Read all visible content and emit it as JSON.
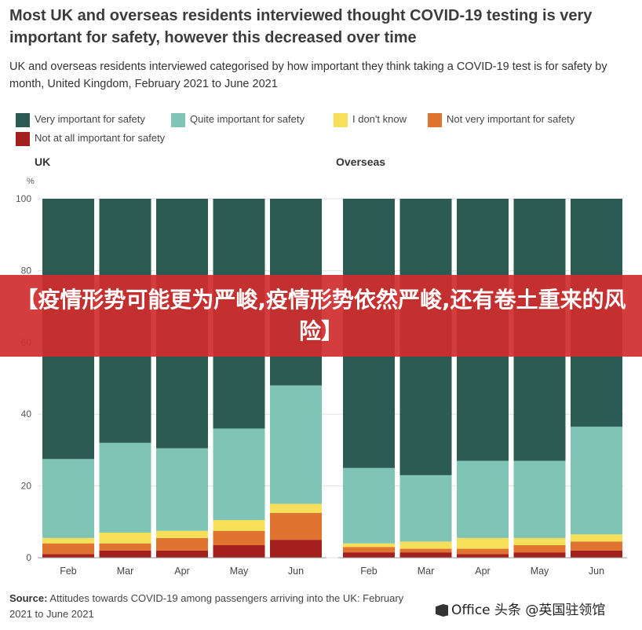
{
  "header": {
    "title": "Most UK and overseas residents interviewed thought COVID-19 testing is very important for safety, however this decreased over time",
    "subtitle": "UK and overseas residents interviewed categorised by how important they think taking a COVID-19 test is for safety by month, United Kingdom, February 2021 to June 2021"
  },
  "footer": {
    "source_label": "Source:",
    "source_text": "Attitudes towards COVID-19 among passengers arriving into the UK: February 2021 to June 2021"
  },
  "banner": {
    "text": "【疫情形势可能更为严峻,疫情形势依然严峻,还有卷土重来的风险】"
  },
  "watermark": {
    "text": "Office 头条 @英国驻领馆",
    "icon": "office-logo-icon"
  },
  "colors": {
    "very": "#2b5b52",
    "quite": "#7fc4b5",
    "dont_know": "#f6e05a",
    "not_very": "#e0732f",
    "not_at_all": "#a3201e"
  },
  "chart_data": {
    "type": "bar",
    "stacked": true,
    "categories": [
      "Feb",
      "Mar",
      "Apr",
      "May",
      "Jun"
    ],
    "ylabel": "%",
    "ylim": [
      0,
      100
    ],
    "yticks": [
      0,
      20,
      40,
      60,
      80,
      100
    ],
    "legend_position": "top-left",
    "series_names": [
      "Very important for safety",
      "Quite important for safety",
      "I don't know",
      "Not very important for safety",
      "Not at all important for safety"
    ],
    "panels": [
      {
        "title": "UK",
        "series": [
          {
            "name": "Not at all important for safety",
            "values": [
              1,
              2,
              2,
              3.5,
              5
            ]
          },
          {
            "name": "Not very important for safety",
            "values": [
              3,
              2,
              3.5,
              4,
              7.5
            ]
          },
          {
            "name": "I don't know",
            "values": [
              1.5,
              3,
              2,
              3,
              2.5
            ]
          },
          {
            "name": "Quite important for safety",
            "values": [
              22,
              25,
              23,
              25.5,
              33
            ]
          },
          {
            "name": "Very important for safety",
            "values": [
              72.5,
              68,
              69.5,
              64,
              52
            ]
          }
        ]
      },
      {
        "title": "Overseas",
        "series": [
          {
            "name": "Not at all important for safety",
            "values": [
              1.5,
              1.5,
              1,
              1.5,
              2
            ]
          },
          {
            "name": "Not very important for safety",
            "values": [
              1.5,
              1,
              1.5,
              2,
              2.5
            ]
          },
          {
            "name": "I don't know",
            "values": [
              1,
              2,
              3,
              2,
              2
            ]
          },
          {
            "name": "Quite important for safety",
            "values": [
              21,
              18.5,
              21.5,
              21.5,
              30
            ]
          },
          {
            "name": "Very important for safety",
            "values": [
              75,
              77,
              73,
              73,
              63.5
            ]
          }
        ]
      }
    ]
  }
}
